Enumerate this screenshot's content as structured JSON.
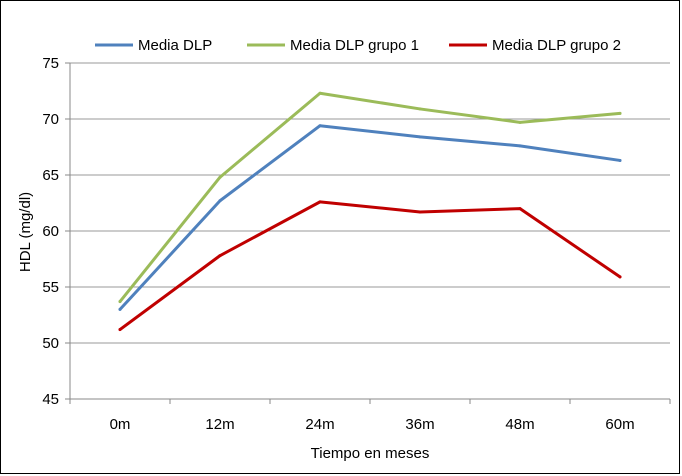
{
  "chart_data": {
    "type": "line",
    "title": "",
    "xlabel": "Tiempo en meses",
    "ylabel": "HDL (mg/dl)",
    "categories": [
      "0m",
      "12m",
      "24m",
      "36m",
      "48m",
      "60m"
    ],
    "ylim": [
      45,
      75
    ],
    "yticks": [
      45,
      50,
      55,
      60,
      65,
      70,
      75
    ],
    "grid": true,
    "legend_position": "top",
    "series": [
      {
        "name": "Media DLP",
        "color": "#4f81bd",
        "values": [
          53.0,
          62.7,
          69.4,
          68.4,
          67.6,
          66.3
        ]
      },
      {
        "name": "Media DLP grupo 1",
        "color": "#9bbb59",
        "values": [
          53.7,
          64.8,
          72.3,
          70.9,
          69.7,
          70.5
        ]
      },
      {
        "name": "Media DLP grupo 2",
        "color": "#c00000",
        "values": [
          51.2,
          57.8,
          62.6,
          61.7,
          62.0,
          55.9
        ]
      }
    ]
  }
}
